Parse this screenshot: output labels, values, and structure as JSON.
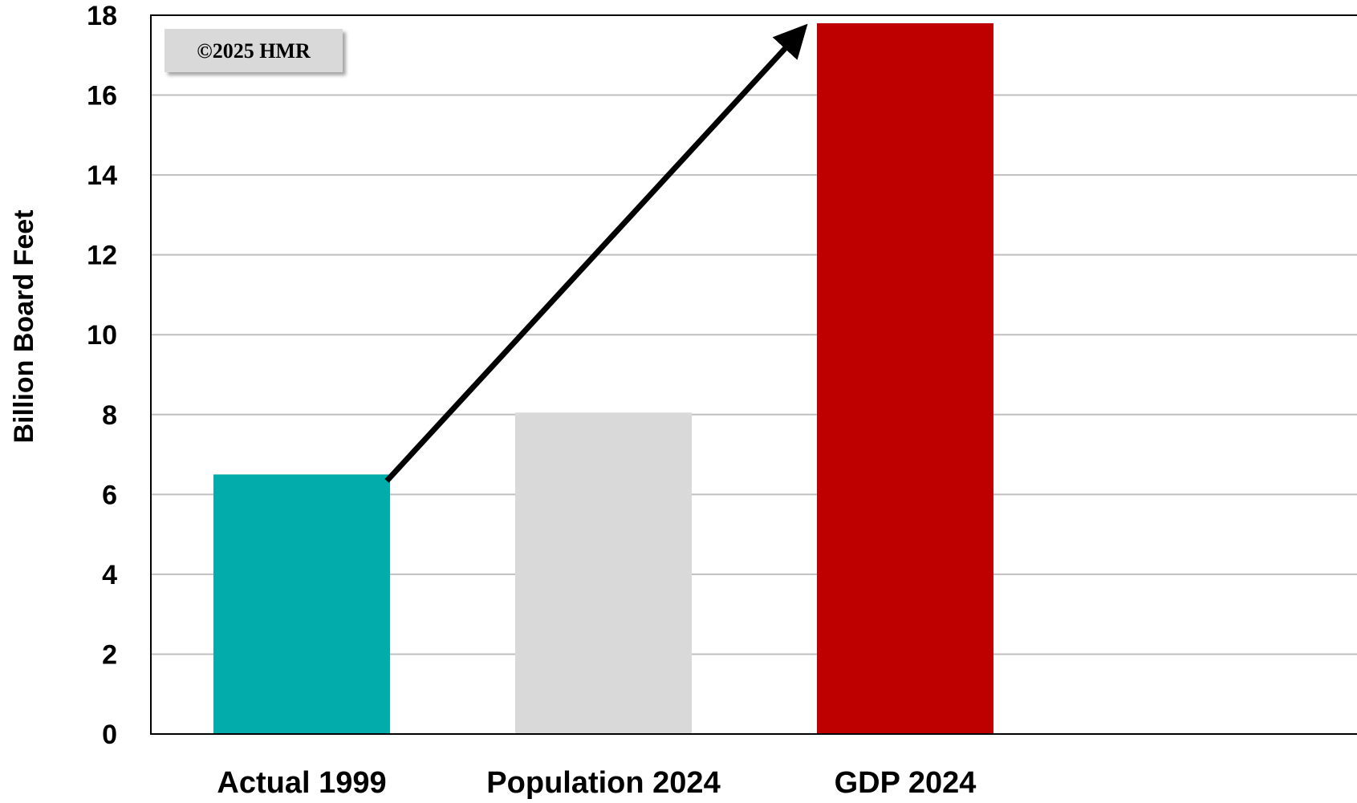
{
  "chart_data": {
    "type": "bar",
    "categories": [
      "Actual 1999",
      "Population 2024",
      "GDP 2024"
    ],
    "values": [
      6.5,
      8.05,
      17.8
    ],
    "colors": [
      "#02ACAA",
      "#D9D9D9",
      "#BE0000"
    ],
    "xlabel": "",
    "ylabel": "Billion Board Feet",
    "ylim": [
      0,
      18
    ],
    "yticks": [
      0,
      2,
      4,
      6,
      8,
      10,
      12,
      14,
      16,
      18
    ],
    "grid": true,
    "annotation": {
      "type": "arrow",
      "from_category": "Actual 1999",
      "to_category": "GDP 2024",
      "color": "#000000"
    },
    "watermark": "©2025 HMR"
  }
}
